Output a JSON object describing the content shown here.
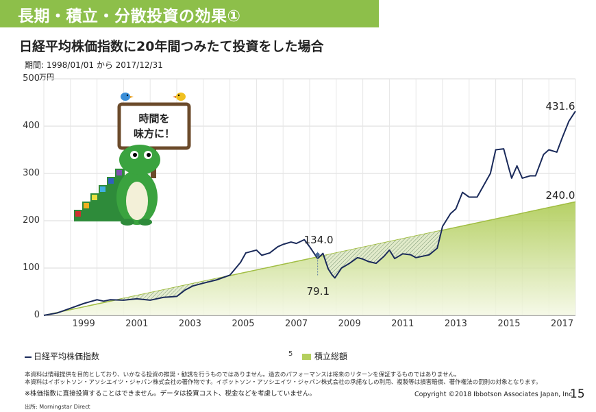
{
  "header": {
    "title": "長期・積立・分散投資の効果①"
  },
  "subtitle": "日経平均株価指数に20年間つみたて投資をした場合",
  "period": "期間: 1998/01/01 から 2017/12/31",
  "mascot": {
    "sign_line1": "時間を",
    "sign_line2": "味方に！"
  },
  "colors": {
    "header": "#8dbf4a",
    "nikkei": "#1a2a5a",
    "cumulative": "#b4cf5e"
  },
  "chart_data": {
    "type": "area",
    "ylabel_unit": "万円",
    "ylim": [
      0,
      500
    ],
    "yticks": [
      "0",
      "100",
      "200",
      "300",
      "400",
      "500"
    ],
    "xlim": [
      1998,
      2018
    ],
    "xticks": [
      "1999",
      "2001",
      "2003",
      "2005",
      "2007",
      "2009",
      "2011",
      "2013",
      "2015",
      "2017"
    ],
    "grid": true,
    "series": [
      {
        "name": "日経平均株価指数",
        "type": "line",
        "x": [
          1998.0,
          1998.5,
          1999.0,
          1999.5,
          2000.0,
          2000.25,
          2000.5,
          2001.0,
          2001.5,
          2002.0,
          2002.5,
          2003.0,
          2003.3,
          2003.6,
          2004.0,
          2004.5,
          2005.0,
          2005.4,
          2005.6,
          2006.0,
          2006.2,
          2006.5,
          2006.8,
          2007.0,
          2007.3,
          2007.5,
          2007.8,
          2008.0,
          2008.3,
          2008.5,
          2008.7,
          2008.85,
          2008.95,
          2009.2,
          2009.5,
          2009.8,
          2010.0,
          2010.2,
          2010.5,
          2010.8,
          2011.0,
          2011.2,
          2011.5,
          2011.8,
          2012.0,
          2012.5,
          2012.8,
          2013.0,
          2013.3,
          2013.5,
          2013.75,
          2014.0,
          2014.3,
          2014.5,
          2014.8,
          2015.0,
          2015.3,
          2015.5,
          2015.6,
          2015.8,
          2016.0,
          2016.3,
          2016.5,
          2016.8,
          2017.0,
          2017.3,
          2017.5,
          2017.75,
          2018.0
        ],
        "values": [
          0,
          5,
          15,
          25,
          33,
          30,
          33,
          32,
          35,
          32,
          38,
          40,
          53,
          62,
          68,
          75,
          85,
          112,
          132,
          138,
          127,
          132,
          145,
          150,
          155,
          152,
          160,
          145,
          120,
          131,
          98,
          85,
          79.1,
          100,
          110,
          122,
          119,
          114,
          110,
          125,
          138,
          120,
          130,
          128,
          122,
          128,
          142,
          188,
          215,
          225,
          260,
          250,
          250,
          270,
          300,
          350,
          352,
          310,
          290,
          316,
          290,
          295,
          295,
          340,
          350,
          345,
          375,
          410,
          431.6
        ]
      },
      {
        "name": "積立総額",
        "type": "area",
        "x": [
          1998,
          2018
        ],
        "values": [
          0,
          240.0
        ]
      }
    ],
    "annotations": [
      {
        "text": "431.6",
        "x": 2017.6,
        "y": 440
      },
      {
        "text": "240.0",
        "x": 2017.6,
        "y": 252
      },
      {
        "text": "134.0",
        "x": 2008.3,
        "y": 158
      },
      {
        "text": "79.1",
        "x": 2008.3,
        "y": 50
      }
    ],
    "legend": [
      "日経平均株価指数",
      "積立総額"
    ],
    "legend_position": "bottom"
  },
  "legend": {
    "nikkei": "日経平均株価指数",
    "cut_char": "5",
    "cumulative": "積立総額"
  },
  "disclaimer": {
    "line1": "本資料は情報提供を目的としており、いかなる投資の推奨・勧誘を行うものではありません。過去のパフォーマンスは将来のリターンを保証するものではありません。",
    "line2": "本資料はイボットソン・アソシエイツ・ジャパン株式会社の著作物です。イボットソン・アソシエイツ・ジャパン株式会社の承諾なしの利用、複製等は損害賠償、著作権法の罰則の対象となります。"
  },
  "note": "※株価指数に直接投資することはできません。データは投資コスト、税金などを考慮していません。",
  "copyright": "Copyright ©2018 Ibbotson Associates Japan, Inc.",
  "page_number": "15",
  "source": "出所: Morningstar Direct"
}
